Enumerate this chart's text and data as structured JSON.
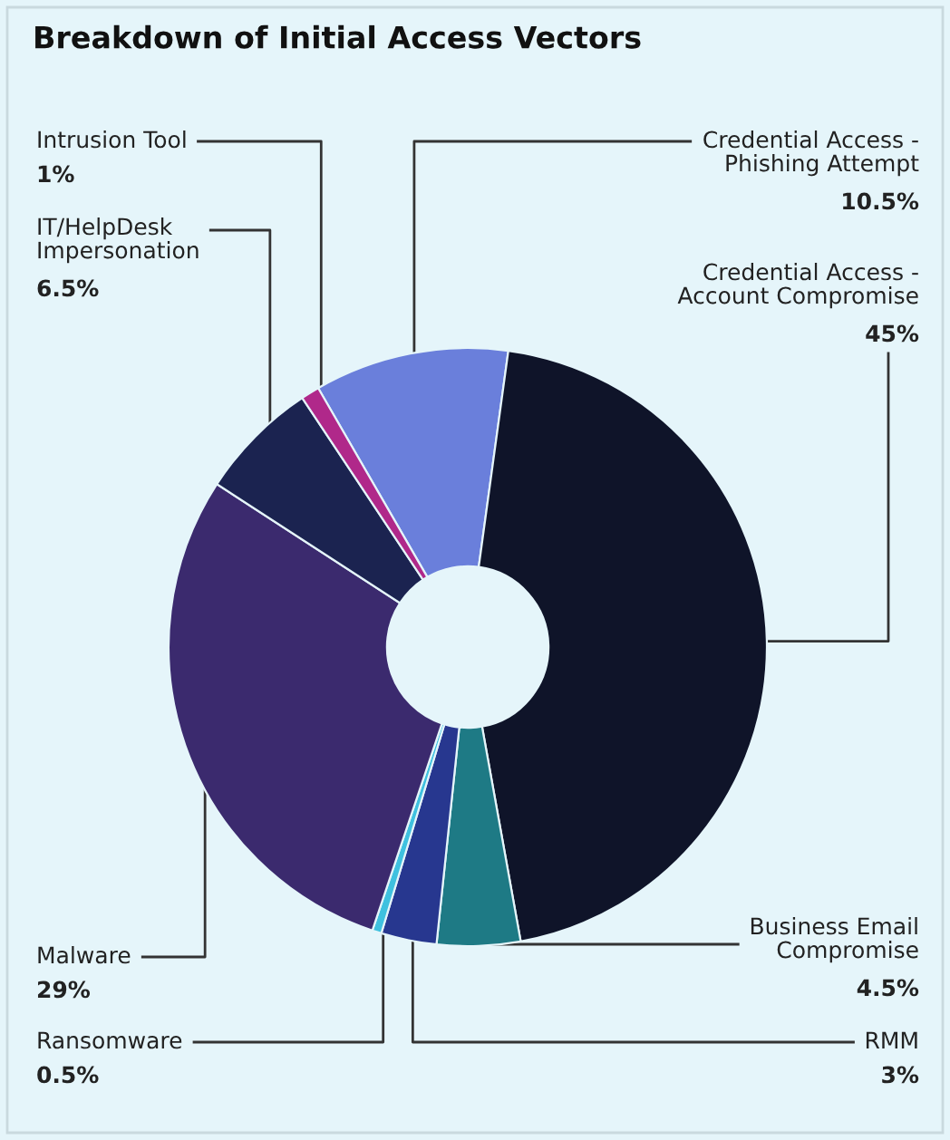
{
  "chart_data": {
    "type": "donut",
    "title": "Breakdown of Initial Access Vectors",
    "categories": [
      "Credential Access -\nPhishing Attempt",
      "Credential Access -\nAccount Compromise",
      "Business Email\nCompromise",
      "RMM",
      "Ransomware",
      "Malware",
      "IT/HelpDesk\nImpersonation",
      "Intrusion Tool"
    ],
    "values": [
      10.5,
      45,
      4.5,
      3,
      0.5,
      29,
      6.5,
      1
    ],
    "value_labels": [
      "10.5%",
      "45%",
      "4.5%",
      "3%",
      "0.5%",
      "29%",
      "6.5%",
      "1%"
    ],
    "colors": [
      "#6a7fdb",
      "#0f1429",
      "#1e7a85",
      "#27378f",
      "#3fc1df",
      "#3b2a6e",
      "#1b2350",
      "#b0288a"
    ]
  }
}
